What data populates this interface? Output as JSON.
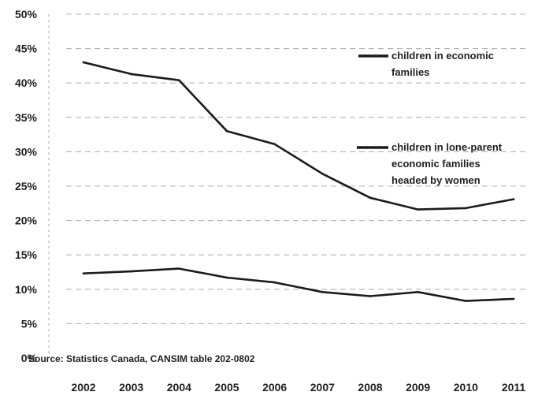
{
  "chart_data": {
    "type": "line",
    "title": "",
    "xlabel": "",
    "ylabel": "",
    "x": [
      "2002",
      "2003",
      "2004",
      "2005",
      "2006",
      "2007",
      "2008",
      "2009",
      "2010",
      "2011"
    ],
    "ylim": [
      0,
      50
    ],
    "y_ticks": [
      "0%",
      "5%",
      "10%",
      "15%",
      "20%",
      "25%",
      "30%",
      "35%",
      "40%",
      "45%",
      "50%"
    ],
    "grid": true,
    "legend_placement": "right",
    "series": [
      {
        "name": "children in economic families",
        "values": [
          12.3,
          12.6,
          13.0,
          11.7,
          11.0,
          9.6,
          9.0,
          9.6,
          8.3,
          8.6
        ],
        "legend_lines": [
          "children in economic",
          "families"
        ]
      },
      {
        "name": "children in lone-parent economic families headed by women",
        "values": [
          43.0,
          41.3,
          40.4,
          33.0,
          31.1,
          26.8,
          23.3,
          21.6,
          21.8,
          23.1
        ],
        "legend_lines": [
          "children in lone-parent",
          "economic families",
          "headed by women"
        ]
      }
    ],
    "source": "Source: Statistics Canada, CANSIM table 202-0802",
    "colors": {
      "line": "#1b1b1b",
      "grid": "#777777",
      "text": "#1f1f1f"
    }
  }
}
